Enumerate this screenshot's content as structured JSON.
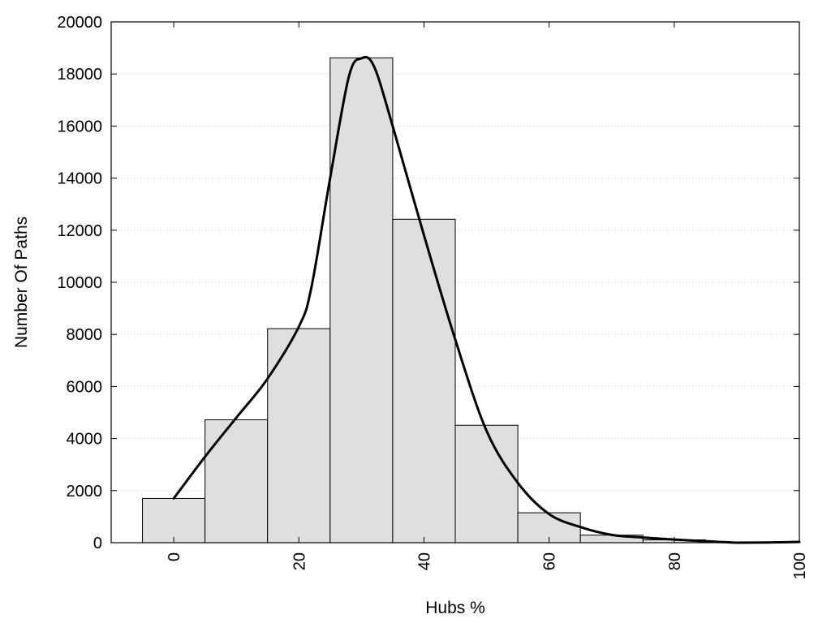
{
  "chart_data": {
    "type": "bar",
    "subtype": "histogram",
    "xlabel": "Hubs %",
    "ylabel": "Number Of Paths",
    "xlim": [
      -10,
      100
    ],
    "ylim": [
      0,
      20000
    ],
    "x_ticks": [
      0,
      20,
      40,
      60,
      80,
      100
    ],
    "y_ticks": [
      0,
      2000,
      4000,
      6000,
      8000,
      10000,
      12000,
      14000,
      16000,
      18000,
      20000
    ],
    "bin_width": 10,
    "bins": [
      0,
      10,
      20,
      30,
      40,
      50,
      60,
      70,
      80
    ],
    "values": [
      1700,
      4720,
      8220,
      18620,
      12420,
      4510,
      1150,
      290,
      110
    ],
    "bar_color": "#dfdfdf",
    "grid": "horizontal dotted",
    "density_curve": {
      "x": [
        0,
        5,
        10,
        15,
        20,
        22,
        25,
        28,
        30,
        32,
        35,
        40,
        45,
        50,
        55,
        60,
        65,
        70,
        75,
        80,
        85,
        90,
        95,
        100
      ],
      "y": [
        1700,
        3300,
        4800,
        6300,
        8300,
        9800,
        14000,
        17900,
        18600,
        18300,
        16000,
        11800,
        7800,
        4300,
        2300,
        1100,
        600,
        300,
        200,
        120,
        60,
        0,
        10,
        30
      ]
    },
    "curve_color": "#000000"
  }
}
